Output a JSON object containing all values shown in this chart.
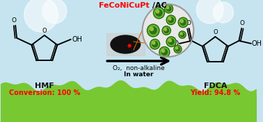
{
  "background_sky_color": "#c5e4f0",
  "grass_color_light": "#78c832",
  "grass_color_dark": "#5aaa18",
  "hmf_label": "HMF",
  "hmf_conversion": "Conversion: 100 %",
  "fdca_label": "FDCA",
  "fdca_yield": "Yield: 94.8 %",
  "catalyst_label_red": "FeCoNiCuPt",
  "catalyst_label_black": " /AC",
  "arrow_label1": "O₂,  non-alkaline",
  "arrow_label2": "In water",
  "label_color_red": "#ff0000",
  "label_color_black": "#000000",
  "label_color_dark": "#111111",
  "np_green": "#5cb832",
  "np_dark": "#2a6010",
  "np_yellow": "#aacc44"
}
